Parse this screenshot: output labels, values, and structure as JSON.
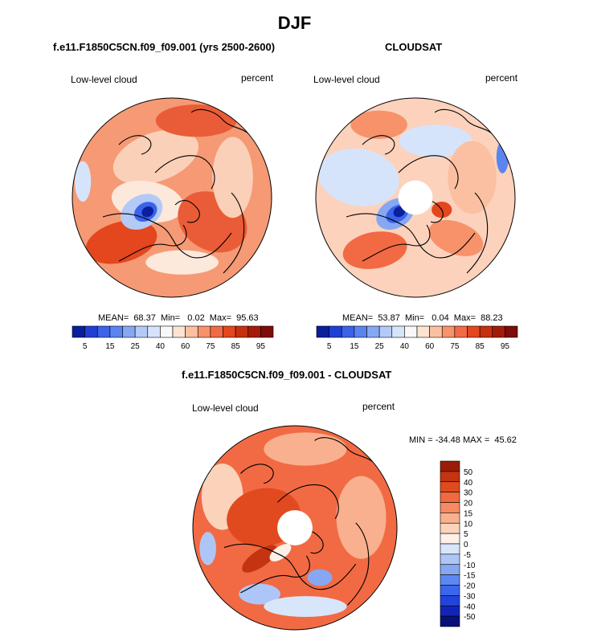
{
  "page": {
    "title": "DJF",
    "left_panel_title": "f.e11.F1850C5CN.f09_f09.001 (yrs 2500-2600)",
    "right_panel_title": "CLOUDSAT",
    "diff_title": "f.e11.F1850C5CN.f09_f09.001 - CLOUDSAT"
  },
  "chart_data": [
    {
      "type": "heatmap",
      "projection": "north-polar-stereographic",
      "title": "f.e11.F1850C5CN.f09_f09.001 (yrs 2500-2600)",
      "variable": "Low-level cloud",
      "units": "percent",
      "stats_label": "MEAN=  68.37  Min=   0.02  Max=  95.63",
      "mean": 68.37,
      "min": 0.02,
      "max": 95.63,
      "colorbar_levels": [
        5,
        10,
        15,
        20,
        25,
        30,
        40,
        50,
        60,
        65,
        75,
        80,
        85,
        90,
        95
      ],
      "colorbar_tick_labels": [
        "5",
        "15",
        "25",
        "40",
        "60",
        "75",
        "85",
        "95"
      ],
      "colorbar_colors": [
        "#0a1e9e",
        "#1f3fd4",
        "#3a63ea",
        "#5a85f0",
        "#86a8f3",
        "#b3caf7",
        "#d6e4fb",
        "#f8f8f8",
        "#fde3d2",
        "#fbc0a1",
        "#f7926b",
        "#f26a43",
        "#e4461e",
        "#c6300f",
        "#a31c0a",
        "#7e0c0a"
      ],
      "features": {
        "background_color": "#f59a74",
        "pole_hole": false,
        "blobs": [
          {
            "color": "#fbd0b8",
            "cx": 0.42,
            "cy": 0.3,
            "rx": 0.22,
            "ry": 0.12,
            "rot": -20
          },
          {
            "color": "#fde8dc",
            "cx": 0.38,
            "cy": 0.52,
            "rx": 0.18,
            "ry": 0.1,
            "rot": 10
          },
          {
            "color": "#ea5c37",
            "cx": 0.62,
            "cy": 0.12,
            "rx": 0.2,
            "ry": 0.08,
            "rot": 0
          },
          {
            "color": "#e4461e",
            "cx": 0.25,
            "cy": 0.72,
            "rx": 0.18,
            "ry": 0.1,
            "rot": -15
          },
          {
            "color": "#ea5c37",
            "cx": 0.7,
            "cy": 0.62,
            "rx": 0.18,
            "ry": 0.14,
            "rot": 30
          },
          {
            "color": "#fbd0b8",
            "cx": 0.8,
            "cy": 0.4,
            "rx": 0.1,
            "ry": 0.2,
            "rot": 0
          },
          {
            "color": "#b3caf7",
            "cx": 0.35,
            "cy": 0.57,
            "rx": 0.11,
            "ry": 0.08,
            "rot": -30
          },
          {
            "color": "#3a63ea",
            "cx": 0.37,
            "cy": 0.57,
            "rx": 0.06,
            "ry": 0.045,
            "rot": -30
          },
          {
            "color": "#0a1e9e",
            "cx": 0.38,
            "cy": 0.57,
            "rx": 0.03,
            "ry": 0.025,
            "rot": -30
          },
          {
            "color": "#fde8dc",
            "cx": 0.55,
            "cy": 0.82,
            "rx": 0.18,
            "ry": 0.06,
            "rot": 0
          },
          {
            "color": "#d6e4fb",
            "cx": 0.06,
            "cy": 0.42,
            "rx": 0.04,
            "ry": 0.1,
            "rot": 0
          }
        ]
      }
    },
    {
      "type": "heatmap",
      "projection": "north-polar-stereographic",
      "title": "CLOUDSAT",
      "variable": "Low-level cloud",
      "units": "percent",
      "stats_label": "MEAN=  53.87  Min=   0.04  Max=  88.23",
      "mean": 53.87,
      "min": 0.04,
      "max": 88.23,
      "colorbar_levels": [
        5,
        10,
        15,
        20,
        25,
        30,
        40,
        50,
        60,
        65,
        75,
        80,
        85,
        90,
        95
      ],
      "colorbar_tick_labels": [
        "5",
        "15",
        "25",
        "40",
        "60",
        "75",
        "85",
        "95"
      ],
      "colorbar_colors": [
        "#0a1e9e",
        "#1f3fd4",
        "#3a63ea",
        "#5a85f0",
        "#86a8f3",
        "#b3caf7",
        "#d6e4fb",
        "#f8f8f8",
        "#fde3d2",
        "#fbc0a1",
        "#f7926b",
        "#f26a43",
        "#e4461e",
        "#c6300f",
        "#a31c0a",
        "#7e0c0a"
      ],
      "features": {
        "background_color": "#fcd2bc",
        "pole_hole": true,
        "blobs": [
          {
            "color": "#d6e4fb",
            "cx": 0.22,
            "cy": 0.4,
            "rx": 0.2,
            "ry": 0.14,
            "rot": 10
          },
          {
            "color": "#d6e4fb",
            "cx": 0.6,
            "cy": 0.22,
            "rx": 0.18,
            "ry": 0.08,
            "rot": 0
          },
          {
            "color": "#f7926b",
            "cx": 0.32,
            "cy": 0.14,
            "rx": 0.14,
            "ry": 0.07,
            "rot": 0
          },
          {
            "color": "#f26a43",
            "cx": 0.3,
            "cy": 0.76,
            "rx": 0.16,
            "ry": 0.09,
            "rot": -10
          },
          {
            "color": "#f7926b",
            "cx": 0.7,
            "cy": 0.7,
            "rx": 0.14,
            "ry": 0.08,
            "rot": 20
          },
          {
            "color": "#fbc0a1",
            "cx": 0.78,
            "cy": 0.4,
            "rx": 0.12,
            "ry": 0.18,
            "rot": 0
          },
          {
            "color": "#86a8f3",
            "cx": 0.4,
            "cy": 0.58,
            "rx": 0.1,
            "ry": 0.07,
            "rot": -30
          },
          {
            "color": "#3a63ea",
            "cx": 0.41,
            "cy": 0.58,
            "rx": 0.06,
            "ry": 0.04,
            "rot": -30
          },
          {
            "color": "#0a1e9e",
            "cx": 0.42,
            "cy": 0.57,
            "rx": 0.03,
            "ry": 0.025,
            "rot": -30
          },
          {
            "color": "#5a85f0",
            "cx": 0.93,
            "cy": 0.3,
            "rx": 0.03,
            "ry": 0.08,
            "rot": 0
          },
          {
            "color": "#e4461e",
            "cx": 0.63,
            "cy": 0.56,
            "rx": 0.05,
            "ry": 0.04,
            "rot": 0
          }
        ]
      }
    },
    {
      "type": "heatmap",
      "projection": "north-polar-stereographic",
      "title": "f.e11.F1850C5CN.f09_f09.001 - CLOUDSAT",
      "variable": "Low-level cloud",
      "units": "percent",
      "stats_label": "MIN = -34.48 MAX =  45.62",
      "min": -34.48,
      "max": 45.62,
      "colorbar_levels": [
        -50,
        -40,
        -30,
        -20,
        -15,
        -10,
        -5,
        0,
        5,
        10,
        15,
        20,
        30,
        40,
        50
      ],
      "colorbar_tick_labels": [
        "50",
        "40",
        "30",
        "20",
        "15",
        "10",
        "5",
        "0",
        "-5",
        "-10",
        "-15",
        "-20",
        "-30",
        "-40",
        "-50"
      ],
      "colorbar_colors": [
        "#08107a",
        "#1224b8",
        "#2244dd",
        "#3b66ec",
        "#5e88f1",
        "#86a8f3",
        "#aec6f7",
        "#d8e6fb",
        "#fdf0e6",
        "#fbd3bb",
        "#f9b08e",
        "#f68a62",
        "#f0693f",
        "#e14a1f",
        "#c43410",
        "#9c1d07"
      ],
      "features": {
        "background_color": "#f26a43",
        "pole_hole": true,
        "blobs": [
          {
            "color": "#f9b08e",
            "cx": 0.55,
            "cy": 0.12,
            "rx": 0.2,
            "ry": 0.08,
            "rot": 0
          },
          {
            "color": "#fbd3bb",
            "cx": 0.15,
            "cy": 0.35,
            "rx": 0.1,
            "ry": 0.16,
            "rot": 0
          },
          {
            "color": "#e14a1f",
            "cx": 0.35,
            "cy": 0.45,
            "rx": 0.18,
            "ry": 0.14,
            "rot": -10
          },
          {
            "color": "#f9b08e",
            "cx": 0.82,
            "cy": 0.45,
            "rx": 0.12,
            "ry": 0.2,
            "rot": 0
          },
          {
            "color": "#aec6f7",
            "cx": 0.33,
            "cy": 0.82,
            "rx": 0.1,
            "ry": 0.05,
            "rot": 0
          },
          {
            "color": "#d8e6fb",
            "cx": 0.55,
            "cy": 0.88,
            "rx": 0.2,
            "ry": 0.05,
            "rot": 0
          },
          {
            "color": "#86a8f3",
            "cx": 0.62,
            "cy": 0.74,
            "rx": 0.06,
            "ry": 0.04,
            "rot": 0
          },
          {
            "color": "#c43410",
            "cx": 0.33,
            "cy": 0.65,
            "rx": 0.1,
            "ry": 0.04,
            "rot": -35
          },
          {
            "color": "#fdf0e6",
            "cx": 0.43,
            "cy": 0.62,
            "rx": 0.06,
            "ry": 0.03,
            "rot": -35
          },
          {
            "color": "#aec6f7",
            "cx": 0.08,
            "cy": 0.6,
            "rx": 0.04,
            "ry": 0.08,
            "rot": 0
          }
        ]
      }
    }
  ]
}
